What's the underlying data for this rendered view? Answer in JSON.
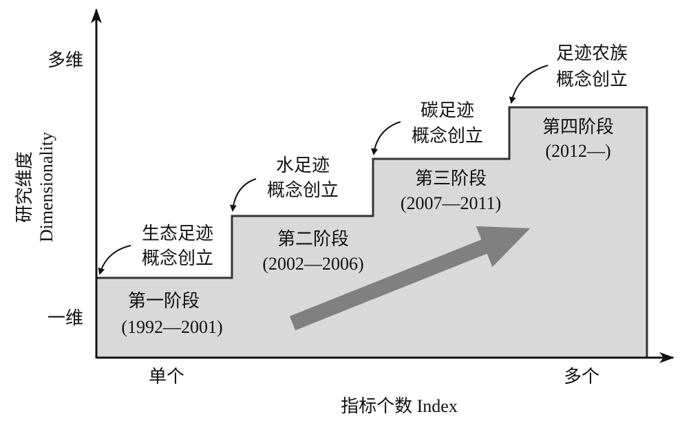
{
  "y_axis": {
    "top_label": "多维",
    "bottom_label": "一维",
    "title_zh": "研究维度",
    "title_en": "Dimensionality"
  },
  "x_axis": {
    "left_label": "单个",
    "right_label": "多个",
    "title": "指标个数 Index"
  },
  "stages": [
    {
      "name": "第一阶段",
      "period": "(1992—2001)"
    },
    {
      "name": "第二阶段",
      "period": "(2002—2006)"
    },
    {
      "name": "第三阶段",
      "period": "(2007—2011)"
    },
    {
      "name": "第四阶段",
      "period": "(2012—)"
    }
  ],
  "milestones": [
    {
      "line1": "生态足迹",
      "line2": "概念创立"
    },
    {
      "line1": "水足迹",
      "line2": "概念创立"
    },
    {
      "line1": "碳足迹",
      "line2": "概念创立"
    },
    {
      "line1": "足迹农族",
      "line2": "概念创立"
    }
  ]
}
